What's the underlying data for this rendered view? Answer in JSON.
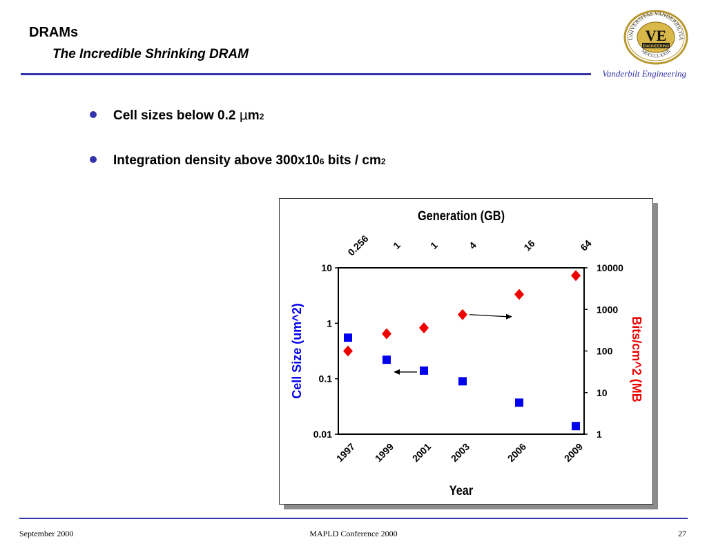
{
  "header": {
    "title": "DRAMs",
    "subtitle": "The Incredible Shrinking DRAM",
    "brand": "Vanderbilt Engineering",
    "logo": {
      "ring_top": "UNIVERSITAS VANDERBILTIA",
      "ring_bottom": "MDCCCLXXIII",
      "monogram": "VE",
      "band": "ENGINEERING"
    }
  },
  "bullets": [
    {
      "pre": "Cell sizes below 0.2 ",
      "mu": "μ",
      "post": "m",
      "sup": "2",
      "tail": ""
    },
    {
      "pre": "Integration density above 300x10",
      "mu": "",
      "post": "",
      "sup": "6",
      "tail": " bits / cm",
      "sup2": "2"
    }
  ],
  "colors": {
    "accent": "#3333aa",
    "cell_series": "#0000ee",
    "bits_series": "#ee0000"
  },
  "chart_data": {
    "type": "scatter",
    "title": "Generation (GB)",
    "xlabel": "Year",
    "ylabel": "Cell Size (um^2)",
    "y2label": "Bits/cm^2 (MB",
    "x_ticks": [
      "1997",
      "1999",
      "2001",
      "2003",
      "2006",
      "2009"
    ],
    "generation_labels": [
      "0.256",
      "1",
      "1",
      "4",
      "16",
      "64"
    ],
    "y_ticks": [
      "10",
      "1",
      "0.1",
      "0.01"
    ],
    "y2_ticks": [
      "10000",
      "1000",
      "100",
      "10",
      "1"
    ],
    "ylim": [
      0.01,
      10
    ],
    "y2lim": [
      1,
      10000
    ],
    "log_scale": true,
    "grid": false,
    "series": [
      {
        "axis": "left",
        "marker": "square",
        "values": [
          0.55,
          0.22,
          0.14,
          0.09,
          0.037,
          0.014
        ]
      },
      {
        "axis": "right",
        "marker": "diamond",
        "values": [
          100,
          260,
          360,
          750,
          2300,
          6500
        ]
      }
    ],
    "annotations": [
      {
        "type": "arrow",
        "from_index": 2,
        "to_index": 1,
        "series": 0,
        "direction": "left"
      },
      {
        "type": "arrow",
        "from_index": 3,
        "to_index": 4,
        "series": 1,
        "direction": "right"
      }
    ]
  },
  "footer": {
    "left": "September 2000",
    "center": "MAPLD Conference 2000",
    "right": "27"
  }
}
